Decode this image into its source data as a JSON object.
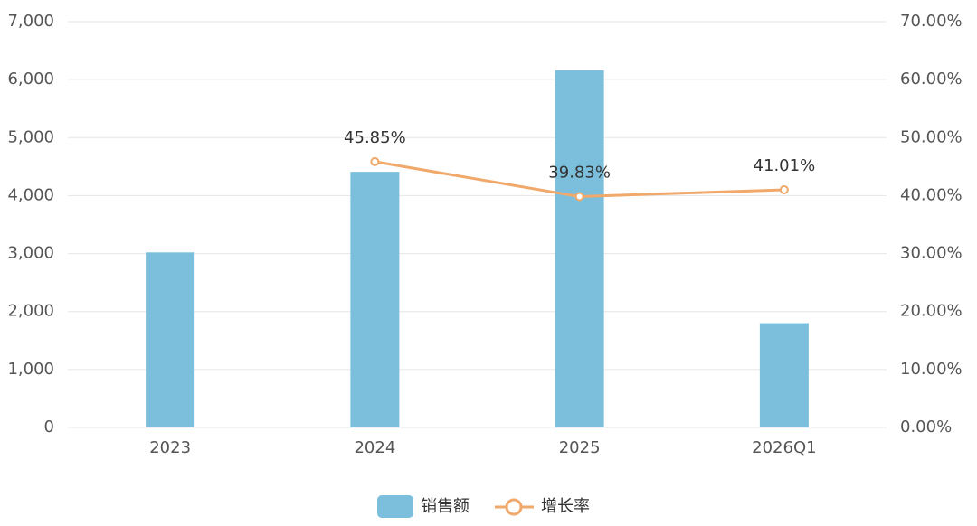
{
  "chart_data": {
    "type": "bar-line",
    "categories": [
      "2023",
      "2024",
      "2025",
      "2026Q1"
    ],
    "series": [
      {
        "name": "销售额",
        "color": "#7bbfdc",
        "type": "bar",
        "values": [
          3020,
          4410,
          6160,
          1800
        ]
      },
      {
        "name": "增长率",
        "color": "#f0a96a",
        "type": "line",
        "axis": "y2",
        "values": [
          null,
          45.85,
          39.83,
          41.01
        ],
        "value_labels": [
          null,
          "45.85%",
          "39.83%",
          "41.01%"
        ]
      }
    ],
    "ylim": [
      0,
      7000
    ],
    "yticks": [
      0,
      {
        "value": 1000,
        "label": "1,000"
      },
      {
        "value": 2000,
        "label": "2,000"
      },
      {
        "value": 3000,
        "label": "3,000"
      },
      {
        "value": 4000,
        "label": "4,000"
      },
      {
        "value": 5000,
        "label": "5,000"
      },
      {
        "value": 6000,
        "label": "6,000"
      },
      {
        "value": 7000,
        "label": "7,000"
      }
    ],
    "y2lim": [
      0,
      70
    ],
    "y2ticks": [
      {
        "value": 0,
        "label": "0.00%"
      },
      {
        "value": 10,
        "label": "10.00%"
      },
      {
        "value": 20,
        "label": "20.00%"
      },
      {
        "value": 30,
        "label": "30.00%"
      },
      {
        "value": 40,
        "label": "40.00%"
      },
      {
        "value": 50,
        "label": "50.00%"
      },
      {
        "value": 60,
        "label": "60.00%"
      },
      {
        "value": 70,
        "label": "70.00%"
      }
    ],
    "grid": true,
    "legend": "bottom"
  }
}
